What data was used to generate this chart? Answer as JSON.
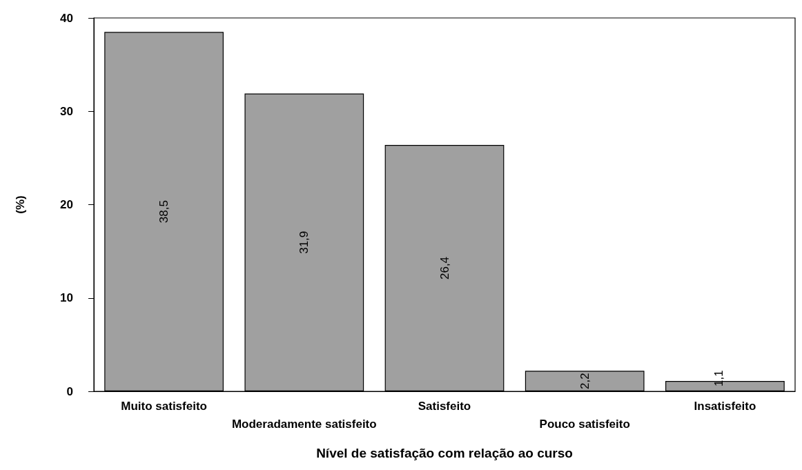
{
  "chart_data": {
    "type": "bar",
    "xlabel": "Nível de satisfação com relação ao curso",
    "ylabel": "(%)",
    "categories": [
      "Muito satisfeito",
      "Moderadamente satisfeito",
      "Satisfeito",
      "Pouco satisfeito",
      "Insatisfeito"
    ],
    "values": [
      38.5,
      31.9,
      26.4,
      2.2,
      1.1
    ],
    "value_labels": [
      "38,5",
      "31,9",
      "26,4",
      "2,2",
      "1,1"
    ],
    "color": "#a0a0a0",
    "ylim": [
      0,
      40
    ],
    "yticks": [
      0,
      10,
      20,
      30,
      40
    ],
    "grid": false
  }
}
